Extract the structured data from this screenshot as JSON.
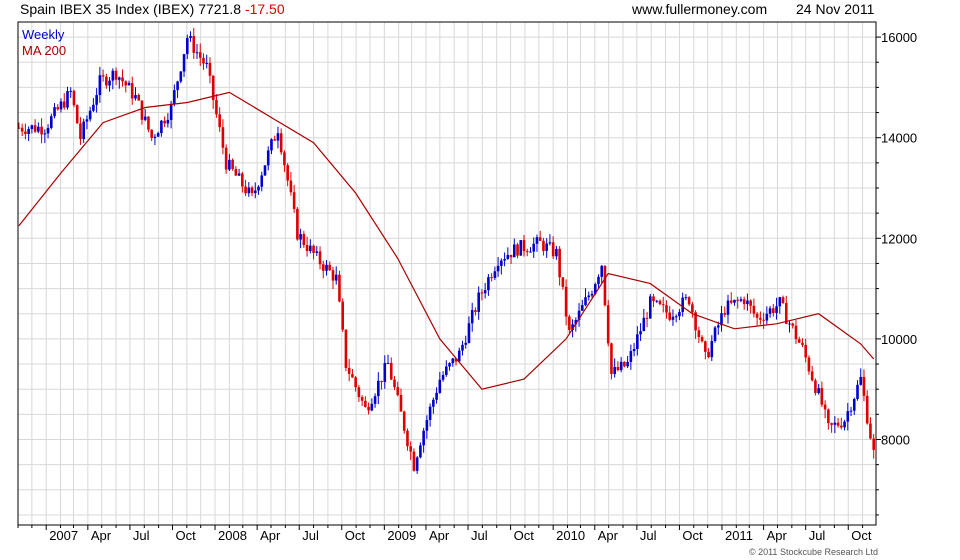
{
  "header": {
    "title": "Spain IBEX 35 Index (IBEX)",
    "last": "7721.8",
    "change": "-17.50",
    "site": "www.fullermoney.com",
    "date": "24 Nov 2011"
  },
  "legend": {
    "weekly": "Weekly",
    "ma": "MA 200"
  },
  "copyright": "© 2011 Stockcube Research Ltd",
  "colors": {
    "up": "#0000cc",
    "down": "#dd0000",
    "ma": "#aa0000",
    "grid": "#d8d8d8"
  },
  "chart_data": {
    "type": "line",
    "title": "Spain IBEX 35 Index (IBEX)",
    "ylim": [
      6300,
      16300
    ],
    "y_ticks": [
      "8000",
      "10000",
      "12000",
      "14000",
      "16000"
    ],
    "x_ticks": [
      "2007",
      "Apr",
      "Jul",
      "Oct",
      "2008",
      "Apr",
      "Jul",
      "Oct",
      "2009",
      "Apr",
      "Jul",
      "Oct",
      "2010",
      "Apr",
      "Jul",
      "Oct",
      "2011",
      "Apr",
      "Jul",
      "Oct"
    ],
    "series": [
      {
        "name": "Weekly",
        "x": [
          "2006-11-03",
          "2006-12-29",
          "2007-02-23",
          "2007-03-16",
          "2007-04-27",
          "2007-06-01",
          "2007-07-13",
          "2007-08-17",
          "2007-09-28",
          "2007-11-02",
          "2007-12-14",
          "2008-01-25",
          "2008-03-21",
          "2008-05-16",
          "2008-06-27",
          "2008-08-08",
          "2008-09-19",
          "2008-10-10",
          "2008-11-21",
          "2009-01-09",
          "2009-02-20",
          "2009-03-06",
          "2009-03-20",
          "2009-05-01",
          "2009-06-12",
          "2009-07-24",
          "2009-09-04",
          "2009-10-16",
          "2009-12-04",
          "2010-01-08",
          "2010-02-05",
          "2010-03-26",
          "2010-04-16",
          "2010-05-07",
          "2010-06-11",
          "2010-07-30",
          "2010-09-10",
          "2010-10-22",
          "2010-11-26",
          "2011-01-07",
          "2011-02-18",
          "2011-03-18",
          "2011-05-06",
          "2011-06-24",
          "2011-08-05",
          "2011-08-19",
          "2011-09-23",
          "2011-10-28",
          "2011-11-25"
        ],
        "values": [
          14200,
          14200,
          14900,
          14000,
          15100,
          15300,
          14800,
          14000,
          14600,
          16000,
          15400,
          13500,
          12800,
          14200,
          12100,
          11600,
          11200,
          9500,
          8600,
          9500,
          8000,
          7500,
          8000,
          9200,
          9700,
          10800,
          11600,
          11800,
          11900,
          11700,
          10100,
          11000,
          11500,
          9300,
          9500,
          10700,
          10500,
          10800,
          9600,
          10600,
          10800,
          10400,
          10700,
          9800,
          8700,
          8200,
          8400,
          9200,
          7722
        ]
      },
      {
        "name": "MA 200",
        "x": [
          "2006-11-03",
          "2007-02-02",
          "2007-05-04",
          "2007-08-03",
          "2007-11-02",
          "2008-02-01",
          "2008-05-02",
          "2008-08-01",
          "2008-10-31",
          "2009-01-30",
          "2009-05-01",
          "2009-07-31",
          "2009-10-30",
          "2010-01-29",
          "2010-04-30",
          "2010-07-30",
          "2010-10-29",
          "2011-01-28",
          "2011-04-29",
          "2011-07-29",
          "2011-10-28",
          "2011-11-25"
        ],
        "values": [
          12250,
          13300,
          14300,
          14600,
          14700,
          14900,
          14400,
          13900,
          12900,
          11600,
          10000,
          9000,
          9200,
          10000,
          11300,
          11100,
          10500,
          10200,
          10300,
          10500,
          9900,
          9600
        ]
      }
    ]
  }
}
